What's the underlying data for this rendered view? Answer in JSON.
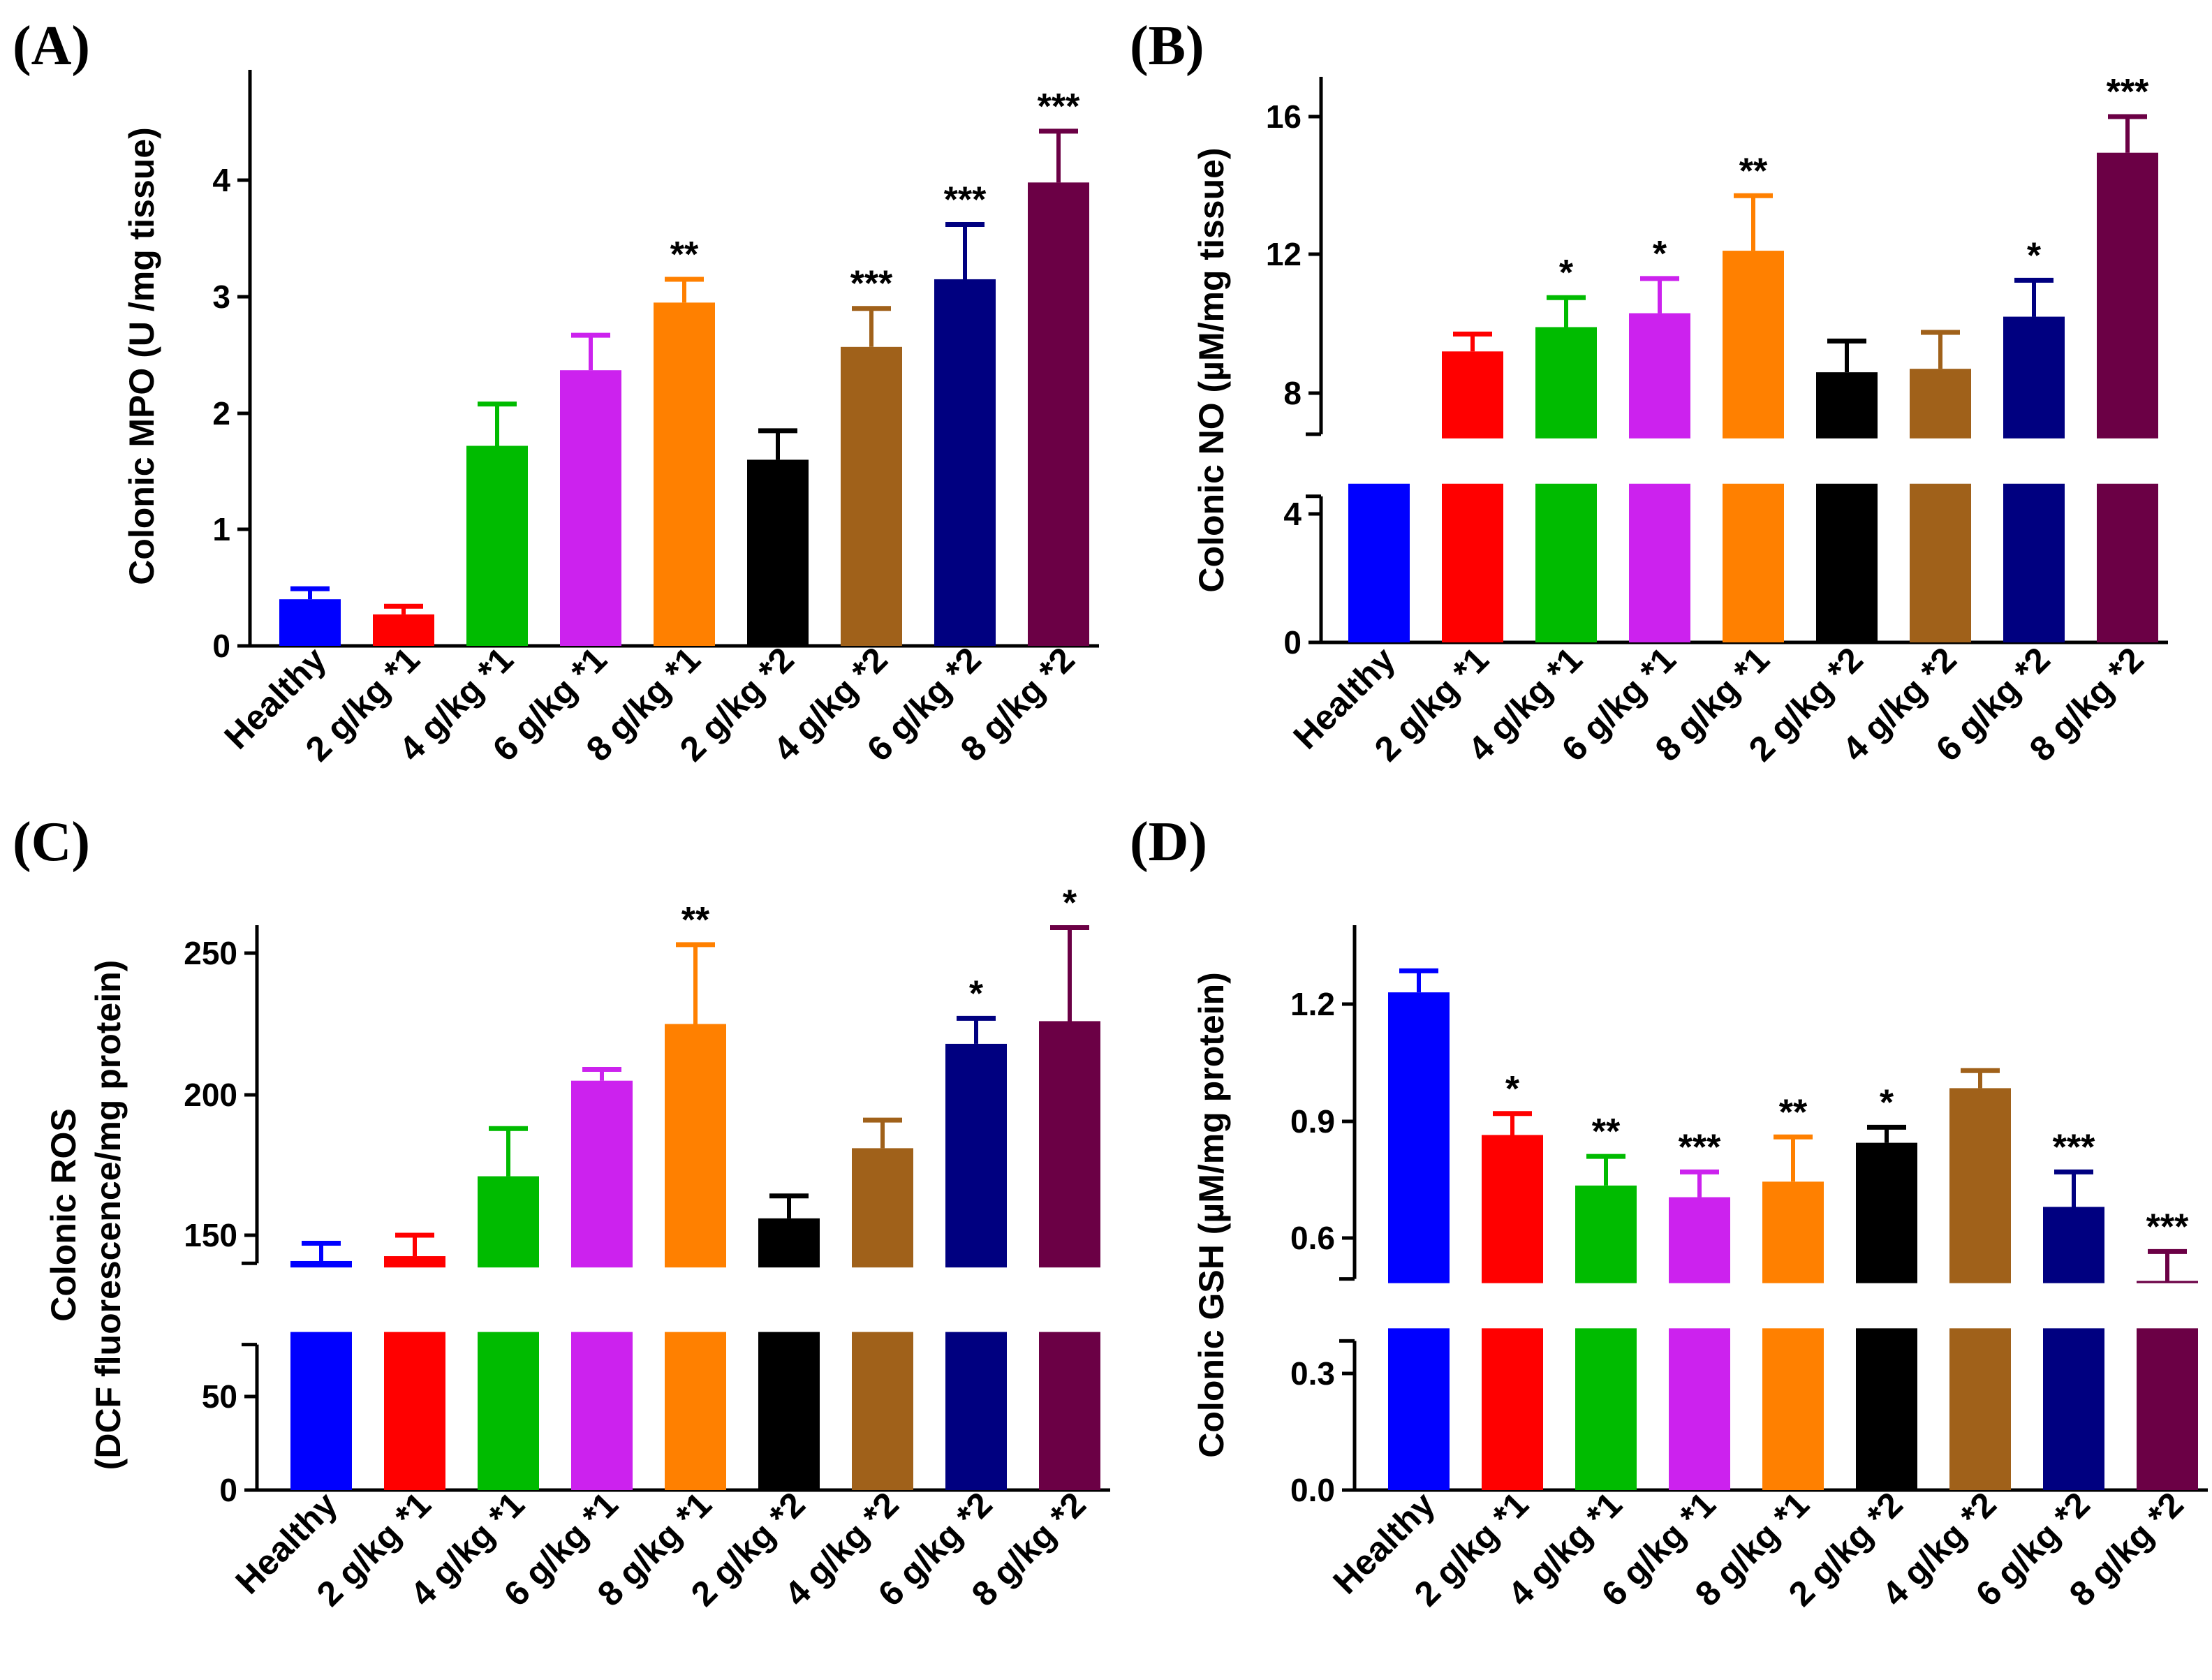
{
  "categories": [
    "Healthy",
    "2 g/kg *1",
    "4 g/kg *1",
    "6 g/kg *1",
    "8 g/kg *1",
    "2 g/kg *2",
    "4 g/kg *2",
    "6 g/kg *2",
    "8 g/kg *2"
  ],
  "colors": [
    "#0000ff",
    "#ff0000",
    "#00bb00",
    "#cc22ee",
    "#ff8000",
    "#000000",
    "#a0611a",
    "#000080",
    "#6b0045"
  ],
  "chart_data": [
    {
      "panel": "(A)",
      "type": "bar",
      "ylabel": "Colonic  MPO (U /mg tissue)",
      "ylabel_lines": [
        "Colonic  MPO (U /mg tissue)"
      ],
      "categories": [
        "Healthy",
        "2 g/kg *1",
        "4 g/kg *1",
        "6 g/kg *1",
        "8 g/kg *1",
        "2 g/kg *2",
        "4 g/kg *2",
        "6 g/kg *2",
        "8 g/kg *2"
      ],
      "values": [
        0.4,
        0.27,
        1.72,
        2.37,
        2.95,
        1.6,
        2.57,
        3.15,
        3.98
      ],
      "errors": [
        0.09,
        0.07,
        0.36,
        0.3,
        0.2,
        0.25,
        0.33,
        0.47,
        0.44
      ],
      "significance": [
        "",
        "",
        "",
        "",
        "**",
        "",
        "***",
        "***",
        "***"
      ],
      "ylim": [
        0,
        4.9
      ],
      "yticks": [
        0,
        1,
        2,
        3,
        4
      ],
      "ytick_labels": [
        "0",
        "1",
        "2",
        "3",
        "4"
      ],
      "axis_break": null
    },
    {
      "panel": "(B)",
      "type": "bar",
      "ylabel": "Colonic NO (µM/mg tissue)",
      "ylabel_lines": [
        "Colonic NO (µM/mg tissue)"
      ],
      "categories": [
        "Healthy",
        "2 g/kg *1",
        "4 g/kg *1",
        "6 g/kg *1",
        "8 g/kg *1",
        "2 g/kg *2",
        "4 g/kg *2",
        "6 g/kg *2",
        "8 g/kg *2"
      ],
      "values": [
        5,
        9.2,
        9.9,
        10.3,
        12.1,
        8.6,
        8.7,
        10.2,
        14.95
      ],
      "errors": [
        0,
        0.5,
        0.85,
        1.0,
        1.6,
        0.9,
        1.05,
        1.05,
        1.05
      ],
      "significance": [
        "",
        "",
        "*",
        "*",
        "**",
        "",
        "",
        "*",
        "***"
      ],
      "ylim": [
        0,
        16.8
      ],
      "yticks": [
        0,
        4,
        8,
        12,
        16
      ],
      "ytick_labels": [
        "0",
        "4",
        "8",
        "12",
        "16"
      ],
      "axis_break": [
        5,
        6.5
      ]
    },
    {
      "panel": "(C)",
      "type": "bar",
      "ylabel": "Colonic ROS (DCF fluorescence/mg protein)",
      "ylabel_lines": [
        "Colonic ROS",
        "(DCF fluorescence/mg protein)"
      ],
      "categories": [
        "Healthy",
        "2 g/kg *1",
        "4 g/kg *1",
        "6 g/kg *1",
        "8 g/kg *1",
        "2 g/kg *2",
        "4 g/kg *2",
        "6 g/kg *2",
        "8 g/kg *2"
      ],
      "values": [
        134,
        137,
        171,
        205,
        225,
        156,
        181,
        218,
        226
      ],
      "errors": [
        11,
        13,
        17,
        4,
        28,
        8,
        10,
        9,
        33
      ],
      "significance": [
        "",
        "",
        "",
        "",
        "**",
        "",
        "",
        "*",
        "*"
      ],
      "ylim": [
        0,
        260
      ],
      "yticks": [
        0,
        50,
        150,
        200,
        250
      ],
      "ytick_labels": [
        "0",
        "50",
        "150",
        "200",
        "250"
      ],
      "axis_break": [
        90,
        130
      ]
    },
    {
      "panel": "(D)",
      "type": "bar",
      "ylabel": "Colonic GSH (µM/mg protein)",
      "ylabel_lines": [
        "Colonic GSH (µM/mg protein)"
      ],
      "categories": [
        "Healthy",
        "2 g/kg *1",
        "4 g/kg *1",
        "6 g/kg *1",
        "8 g/kg *1",
        "2 g/kg *2",
        "4 g/kg *2",
        "6 g/kg *2",
        "8 g/kg *2"
      ],
      "values": [
        1.23,
        0.865,
        0.735,
        0.705,
        0.745,
        0.845,
        0.985,
        0.68,
        0.505
      ],
      "errors": [
        0.055,
        0.055,
        0.075,
        0.065,
        0.115,
        0.04,
        0.045,
        0.09,
        0.065
      ],
      "significance": [
        "",
        "*",
        "**",
        "***",
        "**",
        "*",
        "",
        "***",
        "***"
      ],
      "ylim": [
        0,
        1.35
      ],
      "yticks": [
        0,
        0.3,
        0.6,
        0.9,
        1.2
      ],
      "ytick_labels": [
        "0.0",
        "0.3",
        "0.6",
        "0.9",
        "1.2"
      ],
      "axis_break": [
        0.4,
        0.5
      ]
    }
  ]
}
